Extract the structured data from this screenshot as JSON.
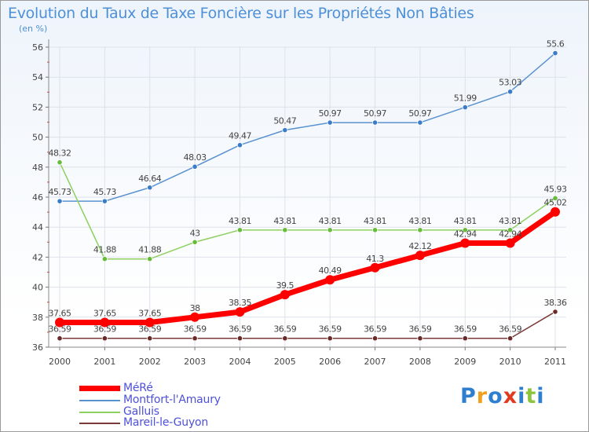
{
  "title": "Evolution du Taux de Taxe Foncière sur les Propriétés Non Bâties",
  "unit_label": "(en %)",
  "logo": {
    "letters": [
      "P",
      "r",
      "o",
      "x",
      "i",
      "t",
      "i"
    ],
    "colors": [
      "#2e7fd0",
      "#f0a020",
      "#2e7fd0",
      "#e03a20",
      "#2e7fd0",
      "#8cc43e",
      "#2e7fd0"
    ]
  },
  "chart_data": {
    "type": "line",
    "title": "Evolution du Taux de Taxe Foncière sur les Propriétés Non Bâties",
    "ylabel": "(en %)",
    "xlabel": "",
    "x": [
      "2000",
      "2001",
      "2002",
      "2003",
      "2004",
      "2005",
      "2006",
      "2007",
      "2008",
      "2009",
      "2010",
      "2011"
    ],
    "ylim": [
      36,
      56
    ],
    "yticks": [
      "36",
      "38",
      "40",
      "42",
      "44",
      "46",
      "48",
      "50",
      "52",
      "54",
      "56"
    ],
    "grid": true,
    "legend_position": "bottom-left",
    "series": [
      {
        "name": "Montfort-l'Amaury",
        "color": "#5a92d0",
        "marker": "#3a7cc8",
        "emphasis": false,
        "values": [
          45.73,
          45.73,
          46.64,
          48.03,
          49.47,
          50.47,
          50.97,
          50.97,
          50.97,
          51.99,
          53.03,
          55.6
        ],
        "labels": [
          "45.73",
          "45.73",
          "46.64",
          "48.03",
          "49.47",
          "50.47",
          "50.97",
          "50.97",
          "50.97",
          "51.99",
          "53.03",
          "55.6"
        ]
      },
      {
        "name": "Galluis",
        "color": "#8ed060",
        "marker": "#66bb3a",
        "emphasis": false,
        "values": [
          48.32,
          41.88,
          41.88,
          43,
          43.81,
          43.81,
          43.81,
          43.81,
          43.81,
          43.81,
          43.81,
          45.93
        ],
        "labels": [
          "48.32",
          "41.88",
          "41.88",
          "43",
          "43.81",
          "43.81",
          "43.81",
          "43.81",
          "43.81",
          "43.81",
          "43.81",
          "45.93"
        ]
      },
      {
        "name": "Mareil-le-Guyon",
        "color": "#7a3a38",
        "marker": "#6a2a28",
        "emphasis": false,
        "values": [
          36.59,
          36.59,
          36.59,
          36.59,
          36.59,
          36.59,
          36.59,
          36.59,
          36.59,
          36.59,
          36.59,
          38.36
        ],
        "labels": [
          "36.59",
          "36.59",
          "36.59",
          "36.59",
          "36.59",
          "36.59",
          "36.59",
          "36.59",
          "36.59",
          "36.59",
          "36.59",
          "38.36"
        ]
      },
      {
        "name": "MéRé",
        "color": "#ff0000",
        "marker": "#ff0000",
        "emphasis": true,
        "values": [
          37.65,
          37.65,
          37.65,
          38,
          38.35,
          39.5,
          40.49,
          41.3,
          42.12,
          42.94,
          42.94,
          45.02
        ],
        "labels": [
          "37.65",
          "37.65",
          "37.65",
          "38",
          "38.35",
          "39.5",
          "40.49",
          "41.3",
          "42.12",
          "42.94",
          "42.94",
          "45.02"
        ]
      }
    ],
    "legend_order": [
      "MéRé",
      "Montfort-l'Amaury",
      "Galluis",
      "Mareil-le-Guyon"
    ]
  }
}
